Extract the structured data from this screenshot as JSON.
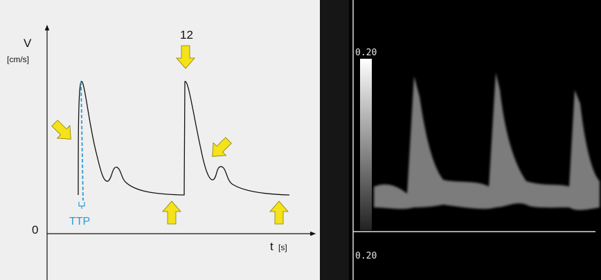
{
  "diagram": {
    "y_axis": {
      "symbol": "V",
      "unit": "[cm/s]",
      "origin": "0"
    },
    "x_axis": {
      "symbol": "t",
      "unit": "[s]"
    },
    "annotations": {
      "number": "12",
      "ttp": "TTP"
    },
    "ultrasound": {
      "scale_top": "0.20",
      "scale_bottom": "0.20"
    }
  }
}
